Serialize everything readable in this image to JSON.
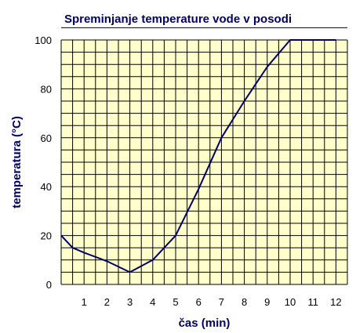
{
  "chart_data": {
    "type": "line",
    "title": "Spreminjanje temperature vode v posodi",
    "xlabel": "čas (min)",
    "ylabel": "temperatura (°C)",
    "xlim": [
      0,
      12.5
    ],
    "ylim": [
      0,
      100
    ],
    "x_ticks": [
      1,
      2,
      3,
      4,
      5,
      6,
      7,
      8,
      9,
      10,
      11,
      12
    ],
    "y_ticks": [
      0,
      20,
      40,
      60,
      80,
      100
    ],
    "grid": true,
    "legend": "none",
    "colors": {
      "plot_background": "#ffffcc",
      "grid": "#000000",
      "line": "#000066",
      "title": "#000066"
    },
    "series": [
      {
        "x": [
          0,
          0.5,
          1,
          2,
          3,
          4,
          5,
          6,
          7,
          8,
          9,
          10,
          11,
          12
        ],
        "y": [
          20,
          15,
          13,
          9.5,
          5,
          10,
          20,
          39,
          60,
          75,
          89,
          100,
          100,
          100
        ]
      }
    ]
  }
}
